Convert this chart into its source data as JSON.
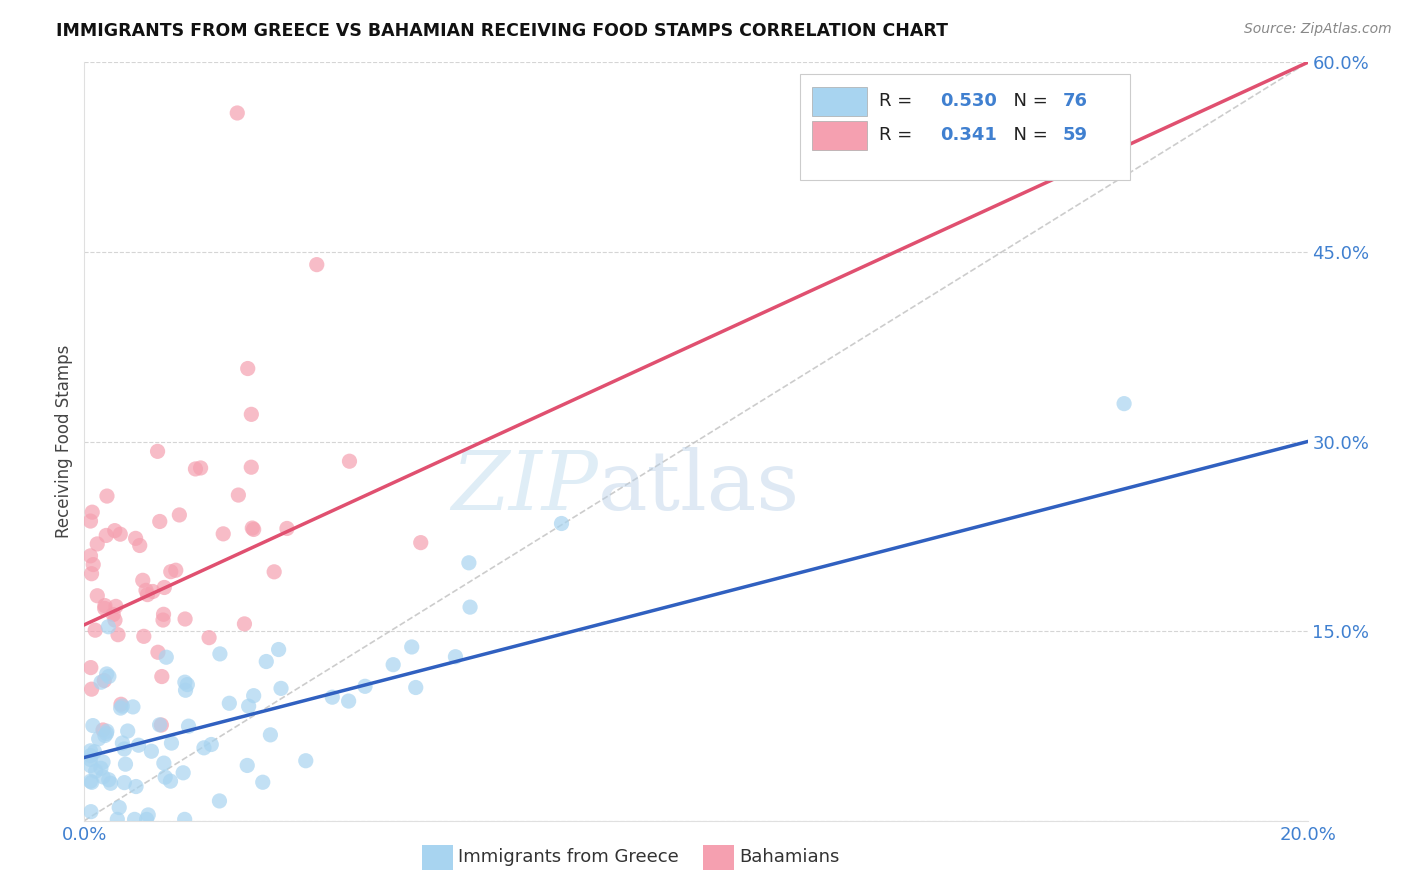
{
  "title": "IMMIGRANTS FROM GREECE VS BAHAMIAN RECEIVING FOOD STAMPS CORRELATION CHART",
  "source": "Source: ZipAtlas.com",
  "ylabel": "Receiving Food Stamps",
  "legend_label1": "Immigrants from Greece",
  "legend_label2": "Bahamians",
  "R1": 0.53,
  "N1": 76,
  "R2": 0.341,
  "N2": 59,
  "xlim": [
    0.0,
    0.2
  ],
  "ylim": [
    0.0,
    0.6
  ],
  "xticks": [
    0.0,
    0.05,
    0.1,
    0.15,
    0.2
  ],
  "yticks": [
    0.0,
    0.15,
    0.3,
    0.45,
    0.6
  ],
  "color_blue": "#a8d4f0",
  "color_pink": "#f5a0b0",
  "line_color_blue": "#3060c0",
  "line_color_pink": "#e05070",
  "line_color_dashed": "#c0c0c0",
  "tick_color": "#4080d0",
  "background_color": "#ffffff",
  "watermark_zip": "ZIP",
  "watermark_atlas": "atlas",
  "blue_line_y0": 0.05,
  "blue_line_y1": 0.3,
  "pink_line_y0": 0.155,
  "pink_line_y1": 0.6
}
